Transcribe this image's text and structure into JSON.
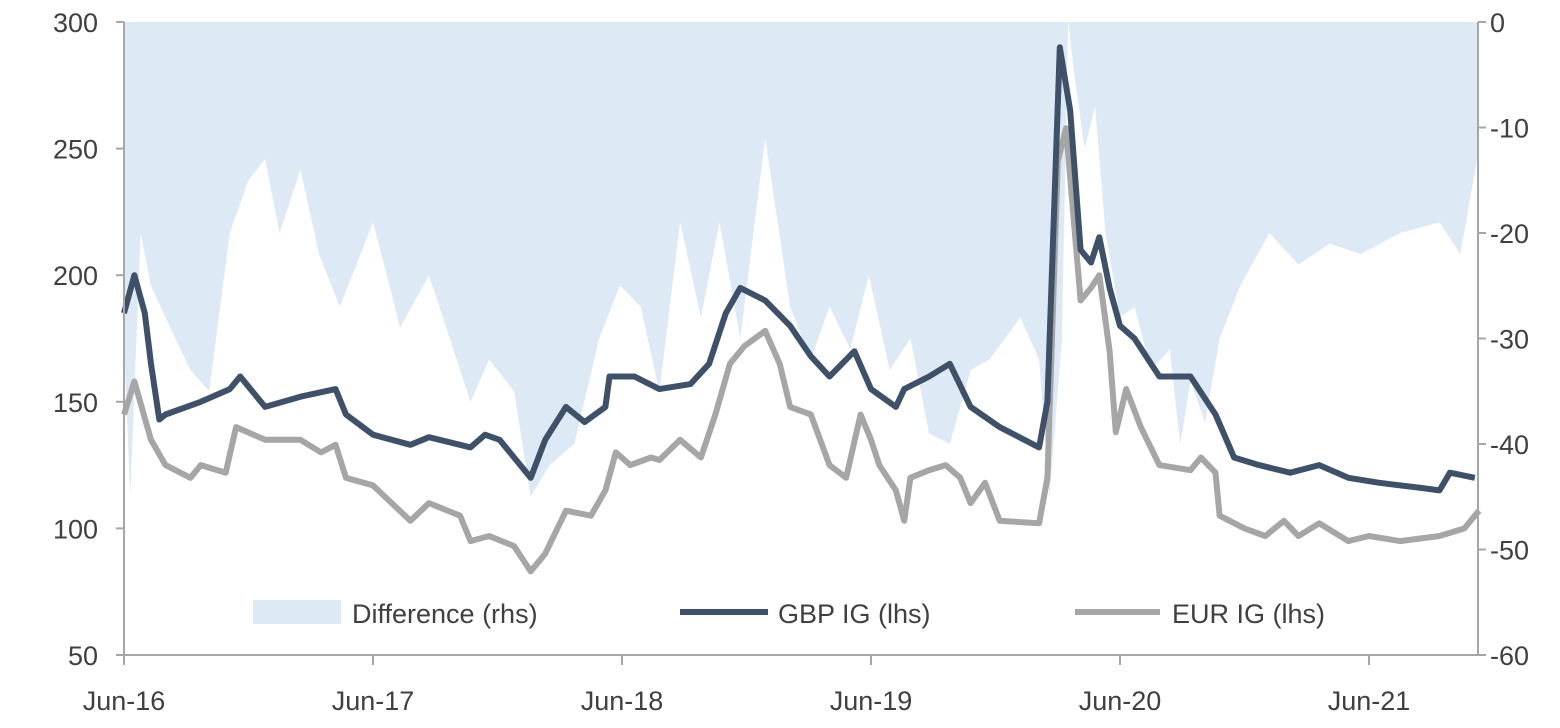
{
  "chart_data": {
    "type": "line",
    "title": "",
    "x_unit": "months since Jun-16",
    "x_tick_labels": [
      "Jun-16",
      "Jun-17",
      "Jun-18",
      "Jun-19",
      "Jun-20",
      "Jun-21"
    ],
    "x_tick_months": [
      0,
      12,
      24,
      36,
      48,
      60
    ],
    "xlim": [
      0,
      65.5
    ],
    "y_left": {
      "ylim": [
        50,
        300
      ],
      "ticks": [
        "50",
        "100",
        "150",
        "200",
        "250",
        "300"
      ]
    },
    "y_right": {
      "ylim": [
        -60,
        0
      ],
      "ticks": [
        "-60",
        "-50",
        "-40",
        "-30",
        "-20",
        "-10",
        "0"
      ]
    },
    "legend": {
      "placement": "bottom-inside",
      "entries": [
        "Difference (rhs)",
        "GBP IG (lhs)",
        "EUR IG (lhs)"
      ]
    },
    "colors": {
      "difference": "#dde9f5",
      "gbp": "#3f5069",
      "eur": "#a6a6a6",
      "axis": "#a6a6a6"
    },
    "series": [
      {
        "name": "Difference (rhs)",
        "type": "area",
        "axis": "right",
        "points": [
          [
            0,
            -30
          ],
          [
            0.3,
            -45
          ],
          [
            0.8,
            -20
          ],
          [
            1.3,
            -25
          ],
          [
            2,
            -28
          ],
          [
            3.2,
            -33
          ],
          [
            4.1,
            -35
          ],
          [
            5.1,
            -20
          ],
          [
            6,
            -15
          ],
          [
            6.8,
            -13
          ],
          [
            7.5,
            -20
          ],
          [
            8.5,
            -14
          ],
          [
            9.4,
            -22
          ],
          [
            10.4,
            -27
          ],
          [
            11.4,
            -22
          ],
          [
            12,
            -19
          ],
          [
            12.8,
            -25
          ],
          [
            13.3,
            -29
          ],
          [
            14.7,
            -24
          ],
          [
            15.7,
            -30
          ],
          [
            16.7,
            -36
          ],
          [
            17.6,
            -32
          ],
          [
            18.8,
            -35
          ],
          [
            19.6,
            -45
          ],
          [
            20.5,
            -42
          ],
          [
            21.7,
            -40
          ],
          [
            22.9,
            -30
          ],
          [
            23.9,
            -25
          ],
          [
            24.9,
            -27
          ],
          [
            25.8,
            -35
          ],
          [
            26.8,
            -19
          ],
          [
            27.8,
            -28
          ],
          [
            28.7,
            -19
          ],
          [
            29.7,
            -30
          ],
          [
            30.9,
            -11
          ],
          [
            32.1,
            -27
          ],
          [
            33.1,
            -32
          ],
          [
            34,
            -27
          ],
          [
            35,
            -31
          ],
          [
            35.9,
            -24
          ],
          [
            36.9,
            -33
          ],
          [
            37.9,
            -30
          ],
          [
            38.8,
            -39
          ],
          [
            39.8,
            -40
          ],
          [
            40.8,
            -33
          ],
          [
            41.7,
            -32
          ],
          [
            43.2,
            -28
          ],
          [
            44.1,
            -32
          ],
          [
            44.6,
            -45
          ],
          [
            45.2,
            -30
          ],
          [
            45.5,
            0
          ],
          [
            45.8,
            -5
          ],
          [
            46.3,
            -12
          ],
          [
            46.8,
            -8
          ],
          [
            47.3,
            -20
          ],
          [
            48,
            -28
          ],
          [
            48.7,
            -27
          ],
          [
            49.5,
            -33
          ],
          [
            50.4,
            -31
          ],
          [
            50.9,
            -40
          ],
          [
            51.4,
            -34
          ],
          [
            52.1,
            -38
          ],
          [
            52.8,
            -30
          ],
          [
            53.8,
            -25
          ],
          [
            55.2,
            -20
          ],
          [
            56.6,
            -23
          ],
          [
            58.1,
            -21
          ],
          [
            59.6,
            -22
          ],
          [
            61.5,
            -20
          ],
          [
            63.4,
            -19
          ],
          [
            64.4,
            -22
          ],
          [
            65.3,
            -12
          ]
        ]
      },
      {
        "name": "GBP IG (lhs)",
        "type": "line",
        "axis": "left",
        "points": [
          [
            0,
            185
          ],
          [
            0.5,
            200
          ],
          [
            1,
            185
          ],
          [
            1.3,
            165
          ],
          [
            1.7,
            143
          ],
          [
            2,
            145
          ],
          [
            3.7,
            150
          ],
          [
            5.1,
            155
          ],
          [
            5.6,
            160
          ],
          [
            6.8,
            148
          ],
          [
            8.5,
            152
          ],
          [
            10.2,
            155
          ],
          [
            10.7,
            145
          ],
          [
            12,
            137
          ],
          [
            13.8,
            133
          ],
          [
            14.7,
            136
          ],
          [
            16.7,
            132
          ],
          [
            17.4,
            137
          ],
          [
            18.1,
            135
          ],
          [
            19.6,
            120
          ],
          [
            20.3,
            135
          ],
          [
            21.3,
            148
          ],
          [
            22.2,
            142
          ],
          [
            23.2,
            148
          ],
          [
            23.4,
            160
          ],
          [
            24.6,
            160
          ],
          [
            25.8,
            155
          ],
          [
            27.3,
            157
          ],
          [
            28.2,
            165
          ],
          [
            29,
            185
          ],
          [
            29.7,
            195
          ],
          [
            30.9,
            190
          ],
          [
            32.1,
            180
          ],
          [
            33.1,
            168
          ],
          [
            34,
            160
          ],
          [
            35.2,
            170
          ],
          [
            36,
            155
          ],
          [
            37.2,
            148
          ],
          [
            37.6,
            155
          ],
          [
            38.8,
            160
          ],
          [
            39.8,
            165
          ],
          [
            40.8,
            148
          ],
          [
            42.2,
            140
          ],
          [
            44.1,
            132
          ],
          [
            44.5,
            150
          ],
          [
            45.1,
            290
          ],
          [
            45.6,
            265
          ],
          [
            46.1,
            210
          ],
          [
            46.6,
            205
          ],
          [
            47,
            215
          ],
          [
            47.5,
            195
          ],
          [
            48,
            180
          ],
          [
            48.7,
            175
          ],
          [
            49.9,
            160
          ],
          [
            51.4,
            160
          ],
          [
            52.6,
            145
          ],
          [
            53.5,
            128
          ],
          [
            54.7,
            125
          ],
          [
            56.2,
            122
          ],
          [
            57.6,
            125
          ],
          [
            59,
            120
          ],
          [
            60.5,
            118
          ],
          [
            62.5,
            116
          ],
          [
            63.4,
            115
          ],
          [
            63.9,
            122
          ],
          [
            65.1,
            120
          ]
        ]
      },
      {
        "name": "EUR IG (lhs)",
        "type": "line",
        "axis": "left",
        "points": [
          [
            0,
            145
          ],
          [
            0.5,
            158
          ],
          [
            1.3,
            135
          ],
          [
            2,
            125
          ],
          [
            3.2,
            120
          ],
          [
            3.7,
            125
          ],
          [
            4.9,
            122
          ],
          [
            5.4,
            140
          ],
          [
            6.8,
            135
          ],
          [
            8.5,
            135
          ],
          [
            9.5,
            130
          ],
          [
            10.2,
            133
          ],
          [
            10.7,
            120
          ],
          [
            12,
            117
          ],
          [
            13.8,
            103
          ],
          [
            14.7,
            110
          ],
          [
            16.2,
            105
          ],
          [
            16.7,
            95
          ],
          [
            17.6,
            97
          ],
          [
            18.8,
            93
          ],
          [
            19.6,
            83
          ],
          [
            20.3,
            90
          ],
          [
            21.3,
            107
          ],
          [
            22.5,
            105
          ],
          [
            23.2,
            115
          ],
          [
            23.7,
            130
          ],
          [
            24.4,
            125
          ],
          [
            25.4,
            128
          ],
          [
            25.8,
            127
          ],
          [
            26.8,
            135
          ],
          [
            27.8,
            128
          ],
          [
            28.5,
            145
          ],
          [
            29.2,
            165
          ],
          [
            29.9,
            172
          ],
          [
            30.9,
            178
          ],
          [
            31.6,
            165
          ],
          [
            32.1,
            148
          ],
          [
            33.1,
            145
          ],
          [
            34,
            125
          ],
          [
            34.8,
            120
          ],
          [
            35.5,
            145
          ],
          [
            36,
            135
          ],
          [
            36.4,
            125
          ],
          [
            37.2,
            115
          ],
          [
            37.6,
            103
          ],
          [
            37.9,
            120
          ],
          [
            38.8,
            123
          ],
          [
            39.6,
            125
          ],
          [
            40.3,
            120
          ],
          [
            40.8,
            110
          ],
          [
            41.5,
            118
          ],
          [
            42.2,
            103
          ],
          [
            44.1,
            102
          ],
          [
            44.5,
            120
          ],
          [
            45,
            245
          ],
          [
            45.4,
            258
          ],
          [
            46.1,
            190
          ],
          [
            46.6,
            195
          ],
          [
            47,
            200
          ],
          [
            47.5,
            170
          ],
          [
            47.8,
            138
          ],
          [
            48.3,
            155
          ],
          [
            49,
            140
          ],
          [
            49.9,
            125
          ],
          [
            51.4,
            123
          ],
          [
            51.9,
            128
          ],
          [
            52.6,
            122
          ],
          [
            52.8,
            105
          ],
          [
            54,
            100
          ],
          [
            55,
            97
          ],
          [
            55.9,
            103
          ],
          [
            56.6,
            97
          ],
          [
            57.6,
            102
          ],
          [
            59,
            95
          ],
          [
            60,
            97
          ],
          [
            61.5,
            95
          ],
          [
            63.4,
            97
          ],
          [
            64.6,
            100
          ],
          [
            65.3,
            107
          ]
        ]
      }
    ]
  }
}
